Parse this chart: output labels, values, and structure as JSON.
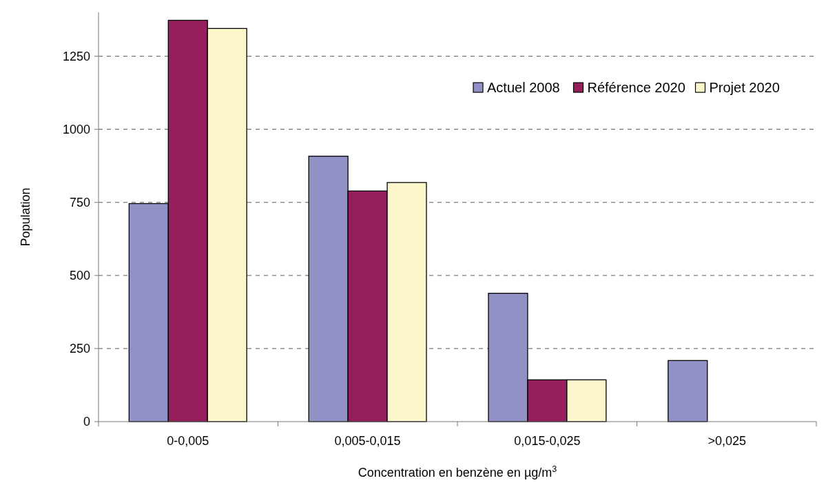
{
  "chart_data": {
    "type": "bar",
    "xlabel": "Concentration en benzène en µg/m$^{3}$",
    "ylabel": "Population",
    "categories": [
      "0-0,005",
      "0,005-0,015",
      "0,015-0,025",
      ">0,025"
    ],
    "series": [
      {
        "name": "Actuel 2008",
        "color": "#9191c5",
        "values": [
          746,
          908,
          439,
          209
        ]
      },
      {
        "name": "Référence 2020",
        "color": "#961e5c",
        "values": [
          1373,
          789,
          143,
          0
        ]
      },
      {
        "name": "Projet 2020",
        "color": "#fbf7cb",
        "values": [
          1345,
          818,
          143,
          0
        ]
      }
    ],
    "ylim": [
      0,
      1400
    ],
    "yticks": [
      0,
      250,
      500,
      750,
      1000,
      1250
    ],
    "grid": "y",
    "legend": "top right"
  }
}
